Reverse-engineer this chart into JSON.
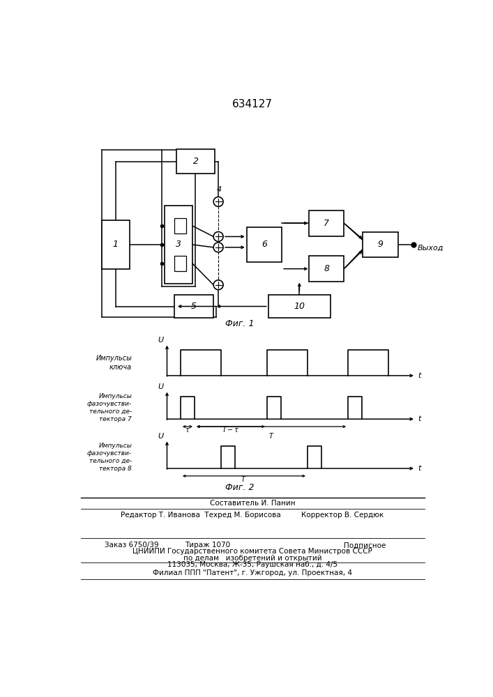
{
  "title": "634127",
  "fig1_label": "Фиг. 1",
  "fig2_label": "Фиг. 2",
  "bg_color": "#ffffff",
  "footer_lines": [
    "Составитель И. Панин",
    "Редактор Т. Иванова  Техред М. Борисова         Корректор В. Сердюк",
    "ЦНИИПИ Государственного комитета Совета Министров СССР",
    "по делам   изобретений и открытий",
    "113035, Москва, Ж-35, Раушская наб., д. 4/5",
    "Филиал ППП \"Патент\", г. Ужгород, ул. Проектная, 4"
  ]
}
